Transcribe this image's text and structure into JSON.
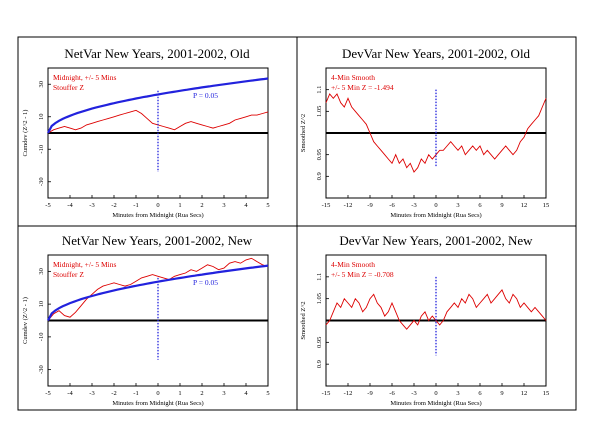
{
  "chart_data": [
    {
      "type": "line",
      "title": "NetVar New Years, 2001-2002, Old",
      "xlabel": "Minutes from Midnight (Rua Secs)",
      "ylabel": "Cumdev (Z^2 - 1)",
      "xlim": [
        -5,
        5
      ],
      "ylim": [
        -40,
        40
      ],
      "xticks": [
        -5,
        -4,
        -3,
        -2,
        -1,
        0,
        1,
        2,
        3,
        4,
        5
      ],
      "yticks": [
        30,
        10,
        -10,
        -30
      ],
      "ytick_labels": [
        "30",
        "10",
        "-10",
        "-30"
      ],
      "grid": false,
      "annotations": [
        "Midnight, +/- 5 Mins",
        "Stouffer Z"
      ],
      "p_label": "P = 0.05",
      "envelope_scale": 10.6,
      "series": [
        {
          "role": "data",
          "color": "#dd0000",
          "x": [
            -5,
            -4.75,
            -4.5,
            -4.25,
            -4,
            -3.75,
            -3.5,
            -3.25,
            -3,
            -2.75,
            -2.5,
            -2.25,
            -2,
            -1.75,
            -1.5,
            -1.25,
            -1,
            -0.75,
            -0.5,
            -0.25,
            0,
            0.25,
            0.5,
            0.75,
            1,
            1.25,
            1.5,
            1.75,
            2,
            2.25,
            2.5,
            2.75,
            3,
            3.25,
            3.5,
            3.75,
            4,
            4.25,
            4.5,
            4.75,
            5
          ],
          "y": [
            0,
            2,
            3,
            4,
            3,
            2,
            3,
            5,
            6,
            7,
            8,
            9,
            10,
            11,
            12,
            13,
            14,
            12,
            9,
            6,
            5,
            4,
            3,
            2,
            4,
            6,
            7,
            6,
            5,
            4,
            3,
            4,
            5,
            6,
            8,
            9,
            10,
            11,
            11,
            12,
            13
          ]
        },
        {
          "role": "envelope",
          "color": "#2222dd"
        },
        {
          "role": "midnight",
          "color": "#2222dd"
        }
      ]
    },
    {
      "type": "line",
      "title": "DevVar New Years, 2001-2002, Old",
      "xlabel": "Minutes from Midnight (Rua Secs)",
      "ylabel": "Smoothed Z^2",
      "xlim": [
        -15,
        15
      ],
      "ylim": [
        0.85,
        1.15
      ],
      "xticks": [
        -15,
        -12,
        -9,
        -6,
        -3,
        0,
        3,
        6,
        9,
        12,
        15
      ],
      "yticks": [
        1.1,
        1.05,
        0.95,
        0.9
      ],
      "ytick_labels": [
        "1.1",
        "1.05",
        "0.95",
        "0.9"
      ],
      "grid": false,
      "annotations": [
        "4-Min Smooth",
        "+/- 5 Min Z = -1.494"
      ],
      "series": [
        {
          "role": "data",
          "color": "#dd0000",
          "x": [
            -15,
            -14.5,
            -14,
            -13.5,
            -13,
            -12.5,
            -12,
            -11.5,
            -11,
            -10.5,
            -10,
            -9.5,
            -9,
            -8.5,
            -8,
            -7.5,
            -7,
            -6.5,
            -6,
            -5.5,
            -5,
            -4.5,
            -4,
            -3.5,
            -3,
            -2.5,
            -2,
            -1.5,
            -1,
            -0.5,
            0,
            0.5,
            1,
            1.5,
            2,
            2.5,
            3,
            3.5,
            4,
            4.5,
            5,
            5.5,
            6,
            6.5,
            7,
            7.5,
            8,
            8.5,
            9,
            9.5,
            10,
            10.5,
            11,
            11.5,
            12,
            12.5,
            13,
            13.5,
            14,
            14.5,
            15
          ],
          "y": [
            1.07,
            1.09,
            1.08,
            1.09,
            1.07,
            1.06,
            1.08,
            1.06,
            1.05,
            1.04,
            1.03,
            1.02,
            1.0,
            0.98,
            0.97,
            0.96,
            0.95,
            0.94,
            0.93,
            0.95,
            0.93,
            0.94,
            0.92,
            0.93,
            0.91,
            0.92,
            0.94,
            0.93,
            0.95,
            0.94,
            0.95,
            0.96,
            0.96,
            0.97,
            0.98,
            0.97,
            0.96,
            0.97,
            0.95,
            0.96,
            0.97,
            0.96,
            0.97,
            0.95,
            0.96,
            0.95,
            0.94,
            0.95,
            0.96,
            0.97,
            0.96,
            0.95,
            0.96,
            0.98,
            0.99,
            1.01,
            1.02,
            1.03,
            1.04,
            1.06,
            1.08
          ]
        },
        {
          "role": "midnight",
          "color": "#2222dd"
        }
      ]
    },
    {
      "type": "line",
      "title": "NetVar New Years, 2001-2002, New",
      "xlabel": "Minutes from Midnight (Rua Secs)",
      "ylabel": "Cumdev (Z^2 - 1)",
      "xlim": [
        -5,
        5
      ],
      "ylim": [
        -40,
        40
      ],
      "xticks": [
        -5,
        -4,
        -3,
        -2,
        -1,
        0,
        1,
        2,
        3,
        4,
        5
      ],
      "yticks": [
        30,
        10,
        -10,
        -30
      ],
      "ytick_labels": [
        "30",
        "10",
        "-10",
        "-30"
      ],
      "grid": false,
      "annotations": [
        "Midnight, +/- 5 Mins",
        "Stouffer Z"
      ],
      "p_label": "P = 0.05",
      "envelope_scale": 10.6,
      "series": [
        {
          "role": "data",
          "color": "#dd0000",
          "x": [
            -5,
            -4.75,
            -4.5,
            -4.25,
            -4,
            -3.75,
            -3.5,
            -3.25,
            -3,
            -2.75,
            -2.5,
            -2.25,
            -2,
            -1.75,
            -1.5,
            -1.25,
            -1,
            -0.75,
            -0.5,
            -0.25,
            0,
            0.25,
            0.5,
            0.75,
            1,
            1.25,
            1.5,
            1.75,
            2,
            2.25,
            2.5,
            2.75,
            3,
            3.25,
            3.5,
            3.75,
            4,
            4.25,
            4.5,
            4.75,
            5
          ],
          "y": [
            0,
            4,
            6,
            3,
            2,
            5,
            9,
            13,
            16,
            19,
            21,
            22,
            23,
            22,
            21,
            22,
            24,
            26,
            27,
            28,
            27,
            26,
            25,
            27,
            28,
            29,
            31,
            30,
            32,
            34,
            33,
            31,
            32,
            35,
            36,
            35,
            37,
            38,
            36,
            34,
            33
          ]
        },
        {
          "role": "envelope",
          "color": "#2222dd"
        },
        {
          "role": "midnight",
          "color": "#2222dd"
        }
      ]
    },
    {
      "type": "line",
      "title": "DevVar New Years, 2001-2002, New",
      "xlabel": "Minutes from Midnight (Rua Secs)",
      "ylabel": "Smoothed Z^2",
      "xlim": [
        -15,
        15
      ],
      "ylim": [
        0.85,
        1.15
      ],
      "xticks": [
        -15,
        -12,
        -9,
        -6,
        -3,
        0,
        3,
        6,
        9,
        12,
        15
      ],
      "yticks": [
        1.1,
        1.05,
        0.95,
        0.9
      ],
      "ytick_labels": [
        "1.1",
        "1.05",
        "0.95",
        "0.9"
      ],
      "grid": false,
      "annotations": [
        "4-Min Smooth",
        "+/- 5 Min Z = -0.708"
      ],
      "series": [
        {
          "role": "data",
          "color": "#dd0000",
          "x": [
            -15,
            -14.5,
            -14,
            -13.5,
            -13,
            -12.5,
            -12,
            -11.5,
            -11,
            -10.5,
            -10,
            -9.5,
            -9,
            -8.5,
            -8,
            -7.5,
            -7,
            -6.5,
            -6,
            -5.5,
            -5,
            -4.5,
            -4,
            -3.5,
            -3,
            -2.5,
            -2,
            -1.5,
            -1,
            -0.5,
            0,
            0.5,
            1,
            1.5,
            2,
            2.5,
            3,
            3.5,
            4,
            4.5,
            5,
            5.5,
            6,
            6.5,
            7,
            7.5,
            8,
            8.5,
            9,
            9.5,
            10,
            10.5,
            11,
            11.5,
            12,
            12.5,
            13,
            13.5,
            14,
            14.5,
            15
          ],
          "y": [
            0.99,
            1.0,
            1.02,
            1.04,
            1.03,
            1.05,
            1.04,
            1.03,
            1.05,
            1.04,
            1.02,
            1.03,
            1.05,
            1.06,
            1.04,
            1.03,
            1.01,
            1.02,
            1.04,
            1.02,
            1.0,
            0.99,
            0.98,
            0.99,
            1.0,
            0.99,
            1.01,
            1.02,
            1.0,
            1.01,
            1.0,
            0.99,
            1.0,
            1.02,
            1.03,
            1.04,
            1.03,
            1.05,
            1.04,
            1.06,
            1.05,
            1.03,
            1.04,
            1.05,
            1.06,
            1.04,
            1.05,
            1.06,
            1.07,
            1.05,
            1.04,
            1.06,
            1.05,
            1.03,
            1.04,
            1.03,
            1.02,
            1.03,
            1.02,
            1.01,
            1.0
          ]
        },
        {
          "role": "midnight",
          "color": "#2222dd"
        }
      ]
    }
  ]
}
